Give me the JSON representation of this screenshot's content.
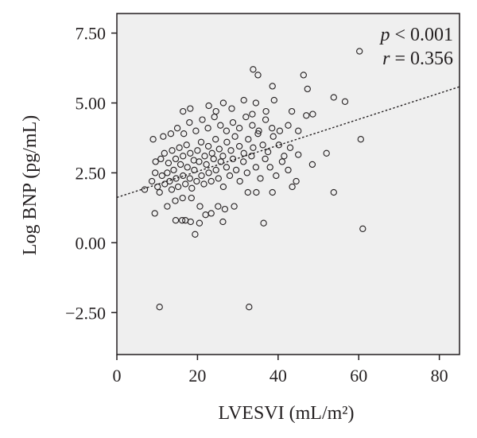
{
  "chart_data": {
    "type": "scatter",
    "xlabel": "LVESVI (mL/m²)",
    "ylabel": "Log BNP (pg/mL)",
    "xlim": [
      0,
      85
    ],
    "ylim": [
      -4.0,
      8.2
    ],
    "xticks": [
      0,
      20,
      40,
      60,
      80
    ],
    "yticks": [
      -2.5,
      0,
      2.5,
      5,
      7.5
    ],
    "xtick_labels": [
      "0",
      "20",
      "40",
      "60",
      "80"
    ],
    "ytick_labels": [
      "−2.50",
      "0.00",
      "2.50",
      "5.00",
      "7.50"
    ],
    "grid": false,
    "plot_background": "#efefef",
    "annotations": {
      "p_symbol": "p",
      "p_text": " < 0.001",
      "r_symbol": "r",
      "r_text": " = 0.356"
    },
    "regression_line": {
      "style": "dotted",
      "x": [
        0,
        85
      ],
      "y": [
        1.62,
        5.58
      ]
    },
    "points": [
      [
        10.6,
        -2.3
      ],
      [
        32.8,
        -2.3
      ],
      [
        19.4,
        0.3
      ],
      [
        61,
        0.5
      ],
      [
        36.4,
        0.7
      ],
      [
        17,
        0.8
      ],
      [
        18.3,
        0.75
      ],
      [
        14.6,
        0.8
      ],
      [
        16.2,
        0.8
      ],
      [
        20.5,
        0.7
      ],
      [
        26.3,
        0.75
      ],
      [
        9.4,
        1.05
      ],
      [
        12.5,
        1.3
      ],
      [
        14.5,
        1.5
      ],
      [
        16.3,
        1.6
      ],
      [
        18.5,
        1.6
      ],
      [
        20.6,
        1.3
      ],
      [
        22,
        1.0
      ],
      [
        23.4,
        1.05
      ],
      [
        25.1,
        1.3
      ],
      [
        26.8,
        1.2
      ],
      [
        29.1,
        1.3
      ],
      [
        32.5,
        1.8
      ],
      [
        34.6,
        1.8
      ],
      [
        38.6,
        1.8
      ],
      [
        43.5,
        2.0
      ],
      [
        53.8,
        1.8
      ],
      [
        6.9,
        1.9
      ],
      [
        8.7,
        2.2
      ],
      [
        9.5,
        2.5
      ],
      [
        10.1,
        2.0
      ],
      [
        10.6,
        1.8
      ],
      [
        11.2,
        2.4
      ],
      [
        11.9,
        2.1
      ],
      [
        12.5,
        2.5
      ],
      [
        13.1,
        2.2
      ],
      [
        13.6,
        1.9
      ],
      [
        14.1,
        2.6
      ],
      [
        14.7,
        2.3
      ],
      [
        15.2,
        2.0
      ],
      [
        15.8,
        2.8
      ],
      [
        16.4,
        2.4
      ],
      [
        17.0,
        2.1
      ],
      [
        17.5,
        2.7
      ],
      [
        18.1,
        2.3
      ],
      [
        18.6,
        1.95
      ],
      [
        19.2,
        2.6
      ],
      [
        19.8,
        2.2
      ],
      [
        20.4,
        2.9
      ],
      [
        21.0,
        2.4
      ],
      [
        21.6,
        2.1
      ],
      [
        22.2,
        2.8
      ],
      [
        22.8,
        2.5
      ],
      [
        23.4,
        2.2
      ],
      [
        24.0,
        3.0
      ],
      [
        24.6,
        2.6
      ],
      [
        25.2,
        2.3
      ],
      [
        25.8,
        2.9
      ],
      [
        26.4,
        2.0
      ],
      [
        27.2,
        2.7
      ],
      [
        28.0,
        2.4
      ],
      [
        28.8,
        3.0
      ],
      [
        29.6,
        2.6
      ],
      [
        30.5,
        2.2
      ],
      [
        31.4,
        2.9
      ],
      [
        32.3,
        2.5
      ],
      [
        33.4,
        3.1
      ],
      [
        34.5,
        2.7
      ],
      [
        35.6,
        2.3
      ],
      [
        36.8,
        3.0
      ],
      [
        38.0,
        2.7
      ],
      [
        39.5,
        2.4
      ],
      [
        41.0,
        2.9
      ],
      [
        42.5,
        2.6
      ],
      [
        44.5,
        2.2
      ],
      [
        9.6,
        2.9
      ],
      [
        10.9,
        3.0
      ],
      [
        11.8,
        3.2
      ],
      [
        12.8,
        2.85
      ],
      [
        13.7,
        3.3
      ],
      [
        14.6,
        3.0
      ],
      [
        15.5,
        3.4
      ],
      [
        16.4,
        3.1
      ],
      [
        17.3,
        3.5
      ],
      [
        18.2,
        3.2
      ],
      [
        19.1,
        2.95
      ],
      [
        20.0,
        3.3
      ],
      [
        20.9,
        3.6
      ],
      [
        21.8,
        3.1
      ],
      [
        22.7,
        3.45
      ],
      [
        23.6,
        3.2
      ],
      [
        24.5,
        3.7
      ],
      [
        25.4,
        3.35
      ],
      [
        26.3,
        3.1
      ],
      [
        27.3,
        3.6
      ],
      [
        28.3,
        3.3
      ],
      [
        29.3,
        3.8
      ],
      [
        30.4,
        3.45
      ],
      [
        31.5,
        3.2
      ],
      [
        32.6,
        3.7
      ],
      [
        33.8,
        3.4
      ],
      [
        35.0,
        3.9
      ],
      [
        36.2,
        3.5
      ],
      [
        37.5,
        3.25
      ],
      [
        38.8,
        3.8
      ],
      [
        40.2,
        3.5
      ],
      [
        41.5,
        3.1
      ],
      [
        43.0,
        3.4
      ],
      [
        45.0,
        3.15
      ],
      [
        48.5,
        2.8
      ],
      [
        52.0,
        3.2
      ],
      [
        9.0,
        3.7
      ],
      [
        11.5,
        3.8
      ],
      [
        13.4,
        3.9
      ],
      [
        15.0,
        4.1
      ],
      [
        16.6,
        3.9
      ],
      [
        18.0,
        4.3
      ],
      [
        19.6,
        4.0
      ],
      [
        21.2,
        4.4
      ],
      [
        22.6,
        4.1
      ],
      [
        24.2,
        4.5
      ],
      [
        25.7,
        4.2
      ],
      [
        27.2,
        4.0
      ],
      [
        28.8,
        4.3
      ],
      [
        30.4,
        4.1
      ],
      [
        32.0,
        4.5
      ],
      [
        33.6,
        4.2
      ],
      [
        35.2,
        4.0
      ],
      [
        36.9,
        4.4
      ],
      [
        38.5,
        4.1
      ],
      [
        40.4,
        4.0
      ],
      [
        42.5,
        4.2
      ],
      [
        45.0,
        4.0
      ],
      [
        47.0,
        4.55
      ],
      [
        48.6,
        4.6
      ],
      [
        60.5,
        3.7
      ],
      [
        16.4,
        4.7
      ],
      [
        18.2,
        4.8
      ],
      [
        22.8,
        4.9
      ],
      [
        24.6,
        4.7
      ],
      [
        26.4,
        5.0
      ],
      [
        28.5,
        4.8
      ],
      [
        31.5,
        5.1
      ],
      [
        33.6,
        4.6
      ],
      [
        34.5,
        5.0
      ],
      [
        37.0,
        4.7
      ],
      [
        39.0,
        5.1
      ],
      [
        43.4,
        4.7
      ],
      [
        53.8,
        5.2
      ],
      [
        56.6,
        5.05
      ],
      [
        47.3,
        5.5
      ],
      [
        38.6,
        5.6
      ],
      [
        35.0,
        6.0
      ],
      [
        46.3,
        6.0
      ],
      [
        33.8,
        6.2
      ],
      [
        60.2,
        6.85
      ]
    ]
  }
}
